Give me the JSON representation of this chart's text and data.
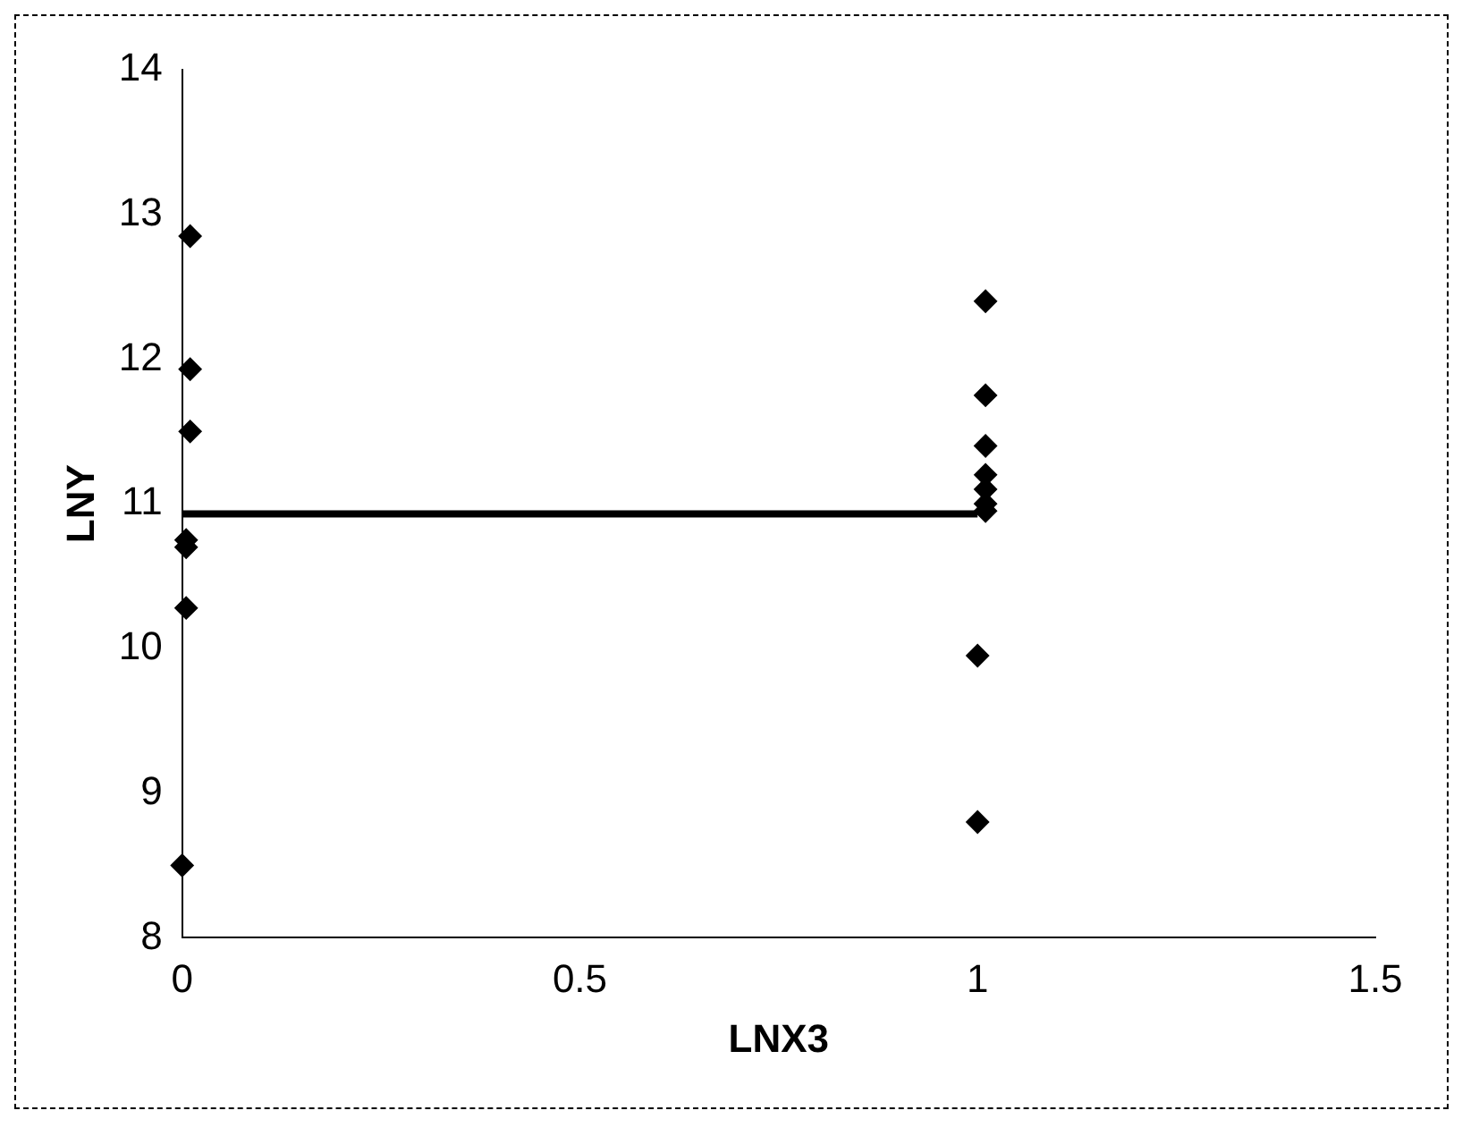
{
  "chart_data": {
    "type": "scatter",
    "xlabel": "LNX3",
    "ylabel": "LNY",
    "xlim": [
      0,
      1.5
    ],
    "xticks": [
      0,
      0.5,
      1,
      1.5
    ],
    "ylim": [
      8,
      14
    ],
    "yticks": [
      8,
      9,
      10,
      11,
      12,
      13,
      14
    ],
    "grid": false,
    "legend": false,
    "series": [
      {
        "type": "scatter",
        "color": "#000000",
        "marker": "diamond",
        "x": [
          0.01,
          0.01,
          0.01,
          0.005,
          0.005,
          0.005,
          0,
          1.01,
          1.01,
          1.01,
          1.01,
          1.01,
          1.01,
          1.01,
          1,
          1
        ],
        "values": [
          12.85,
          11.93,
          11.5,
          10.75,
          10.7,
          10.28,
          8.5,
          12.4,
          11.75,
          11.4,
          11.2,
          11.1,
          11,
          10.95,
          9.95,
          8.8
        ]
      },
      {
        "type": "line",
        "color": "#000000",
        "marker": "none",
        "x": [
          0,
          1
        ],
        "values": [
          10.93,
          10.93
        ]
      }
    ]
  }
}
